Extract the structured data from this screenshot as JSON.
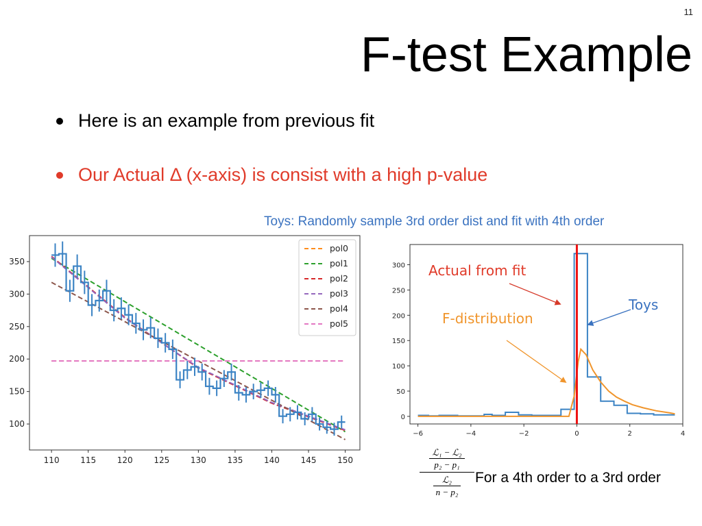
{
  "slide": {
    "number": "11",
    "title": "F-test Example",
    "bullets": [
      {
        "text": "Here is an example from previous fit",
        "color": "#000000"
      },
      {
        "text": "Our Actual Δ (x-axis) is consist with a high p-value",
        "color": "#e03b2a"
      }
    ],
    "toys_caption": "Toys: Randomly sample 3rd order dist and fit with 4th order",
    "formula": {
      "top_num": "ℒ₁ − ℒ₂",
      "top_den": "p₂ − p₁",
      "bot_num": "ℒ₂",
      "bot_den": "n − p₂",
      "caption": "For a 4th order to a 3rd order"
    }
  },
  "chart_data": [
    {
      "type": "line",
      "title": "",
      "xlabel": "",
      "ylabel": "",
      "xlim": [
        107,
        152
      ],
      "ylim": [
        60,
        390
      ],
      "xticks": [
        110,
        115,
        120,
        125,
        130,
        135,
        140,
        145,
        150
      ],
      "yticks": [
        100,
        150,
        200,
        250,
        300,
        350
      ],
      "legend": "top-right",
      "histogram": {
        "color": "#3b83c4",
        "edges": [
          110,
          111,
          112,
          113,
          114,
          115,
          116,
          117,
          118,
          119,
          120,
          121,
          122,
          123,
          124,
          125,
          126,
          127,
          128,
          129,
          130,
          131,
          132,
          133,
          134,
          135,
          136,
          137,
          138,
          139,
          140,
          141,
          142,
          143,
          144,
          145,
          146,
          147,
          148,
          149,
          150
        ],
        "values": [
          360,
          362,
          305,
          343,
          318,
          283,
          290,
          305,
          275,
          278,
          268,
          255,
          245,
          248,
          232,
          225,
          215,
          168,
          183,
          188,
          180,
          158,
          155,
          170,
          180,
          148,
          145,
          150,
          152,
          155,
          145,
          112,
          115,
          118,
          108,
          115,
          100,
          95,
          92,
          103
        ],
        "errors": [
          18,
          19,
          17,
          18,
          18,
          17,
          17,
          17,
          17,
          17,
          16,
          16,
          16,
          16,
          15,
          15,
          15,
          13,
          14,
          14,
          13,
          13,
          12,
          13,
          13,
          12,
          12,
          12,
          12,
          12,
          12,
          11,
          11,
          11,
          10,
          11,
          10,
          10,
          10,
          10
        ]
      },
      "series": [
        {
          "name": "pol0",
          "color": "#ff8c1a",
          "x": [
            110,
            150
          ],
          "y": [
            197,
            197
          ]
        },
        {
          "name": "pol1",
          "color": "#2ca02c",
          "x": [
            110,
            150
          ],
          "y": [
            355,
            88
          ]
        },
        {
          "name": "pol2",
          "color": "#d62728",
          "x": [
            110,
            120,
            130,
            140,
            150
          ],
          "y": [
            358,
            264,
            186,
            132,
            90
          ]
        },
        {
          "name": "pol3",
          "color": "#9467bd",
          "x": [
            110,
            120,
            130,
            140,
            150
          ],
          "y": [
            357,
            263,
            187,
            133,
            91
          ]
        },
        {
          "name": "pol4",
          "color": "#8c564b",
          "x": [
            110,
            150
          ],
          "y": [
            318,
            76
          ]
        },
        {
          "name": "pol5",
          "color": "#e377c2",
          "x": [
            110,
            150
          ],
          "y": [
            197,
            197
          ]
        }
      ]
    },
    {
      "type": "line",
      "title": "",
      "xlabel": "",
      "ylabel": "",
      "xlim": [
        -6.3,
        4.0
      ],
      "ylim": [
        -15,
        340
      ],
      "xticks": [
        -6,
        -4,
        -2,
        0,
        2,
        4
      ],
      "yticks": [
        0,
        50,
        100,
        150,
        200,
        250,
        300
      ],
      "histogram": {
        "name": "Toys",
        "color": "#3b83c4",
        "edges": [
          -6.0,
          -5.6,
          -5.2,
          -4.5,
          -3.5,
          -3.2,
          -2.7,
          -2.2,
          -1.7,
          -0.6,
          -0.1,
          0.4,
          0.9,
          1.4,
          1.9,
          2.4,
          2.9,
          3.7
        ],
        "values": [
          2,
          1,
          2,
          1,
          4,
          2,
          8,
          3,
          2,
          14,
          322,
          78,
          30,
          22,
          6,
          5,
          3
        ]
      },
      "series": [
        {
          "name": "F-distribution",
          "color": "#f0952c",
          "x": [
            -6,
            -0.8,
            -0.3,
            -0.1,
            0.05,
            0.15,
            0.35,
            0.6,
            0.9,
            1.2,
            1.5,
            1.8,
            2.1,
            2.5,
            3.0,
            3.5,
            3.7
          ],
          "y": [
            0,
            0,
            0,
            40,
            108,
            133,
            122,
            92,
            68,
            50,
            38,
            30,
            23,
            17,
            11,
            7,
            5
          ]
        }
      ],
      "vline": {
        "x": 0,
        "color": "#ee1111"
      },
      "annotations": [
        {
          "text": "Actual from fit",
          "color": "#e03b2a"
        },
        {
          "text": "Toys",
          "color": "#3b73c0"
        },
        {
          "text": "F-distribution",
          "color": "#f0952c"
        }
      ]
    }
  ]
}
